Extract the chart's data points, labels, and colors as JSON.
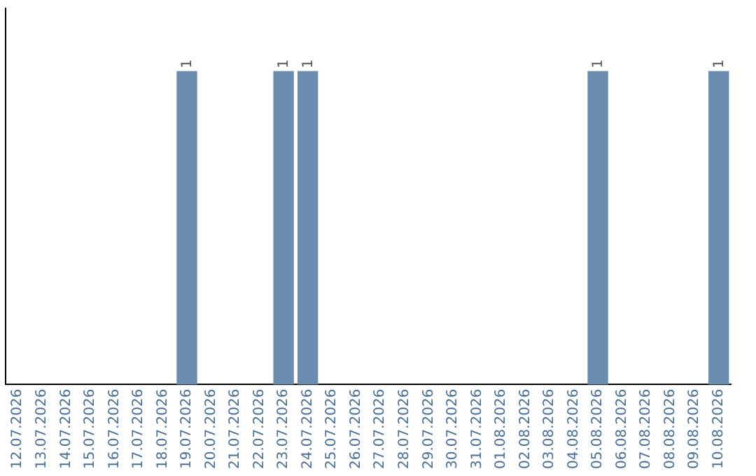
{
  "chart_data": {
    "type": "bar",
    "categories": [
      "12.07.2026",
      "13.07.2026",
      "14.07.2026",
      "15.07.2026",
      "16.07.2026",
      "17.07.2026",
      "18.07.2026",
      "19.07.2026",
      "20.07.2026",
      "21.07.2026",
      "22.07.2026",
      "23.07.2026",
      "24.07.2026",
      "25.07.2026",
      "26.07.2026",
      "27.07.2026",
      "28.07.2026",
      "29.07.2026",
      "30.07.2026",
      "31.07.2026",
      "01.08.2026",
      "02.08.2026",
      "03.08.2026",
      "04.08.2026",
      "05.08.2026",
      "06.08.2026",
      "07.08.2026",
      "08.08.2026",
      "09.08.2026",
      "10.08.2026"
    ],
    "values": [
      0,
      0,
      0,
      0,
      0,
      0,
      0,
      1,
      0,
      0,
      0,
      1,
      1,
      0,
      0,
      0,
      0,
      0,
      0,
      0,
      0,
      0,
      0,
      0,
      1,
      0,
      0,
      0,
      0,
      1
    ],
    "value_labels": [
      null,
      null,
      null,
      null,
      null,
      null,
      null,
      "1",
      null,
      null,
      null,
      "1",
      "1",
      null,
      null,
      null,
      null,
      null,
      null,
      null,
      null,
      null,
      null,
      null,
      "1",
      null,
      null,
      null,
      null,
      "1"
    ],
    "color": "#6a8caf",
    "tick_labels": "x",
    "grid": false,
    "legend": false
  }
}
